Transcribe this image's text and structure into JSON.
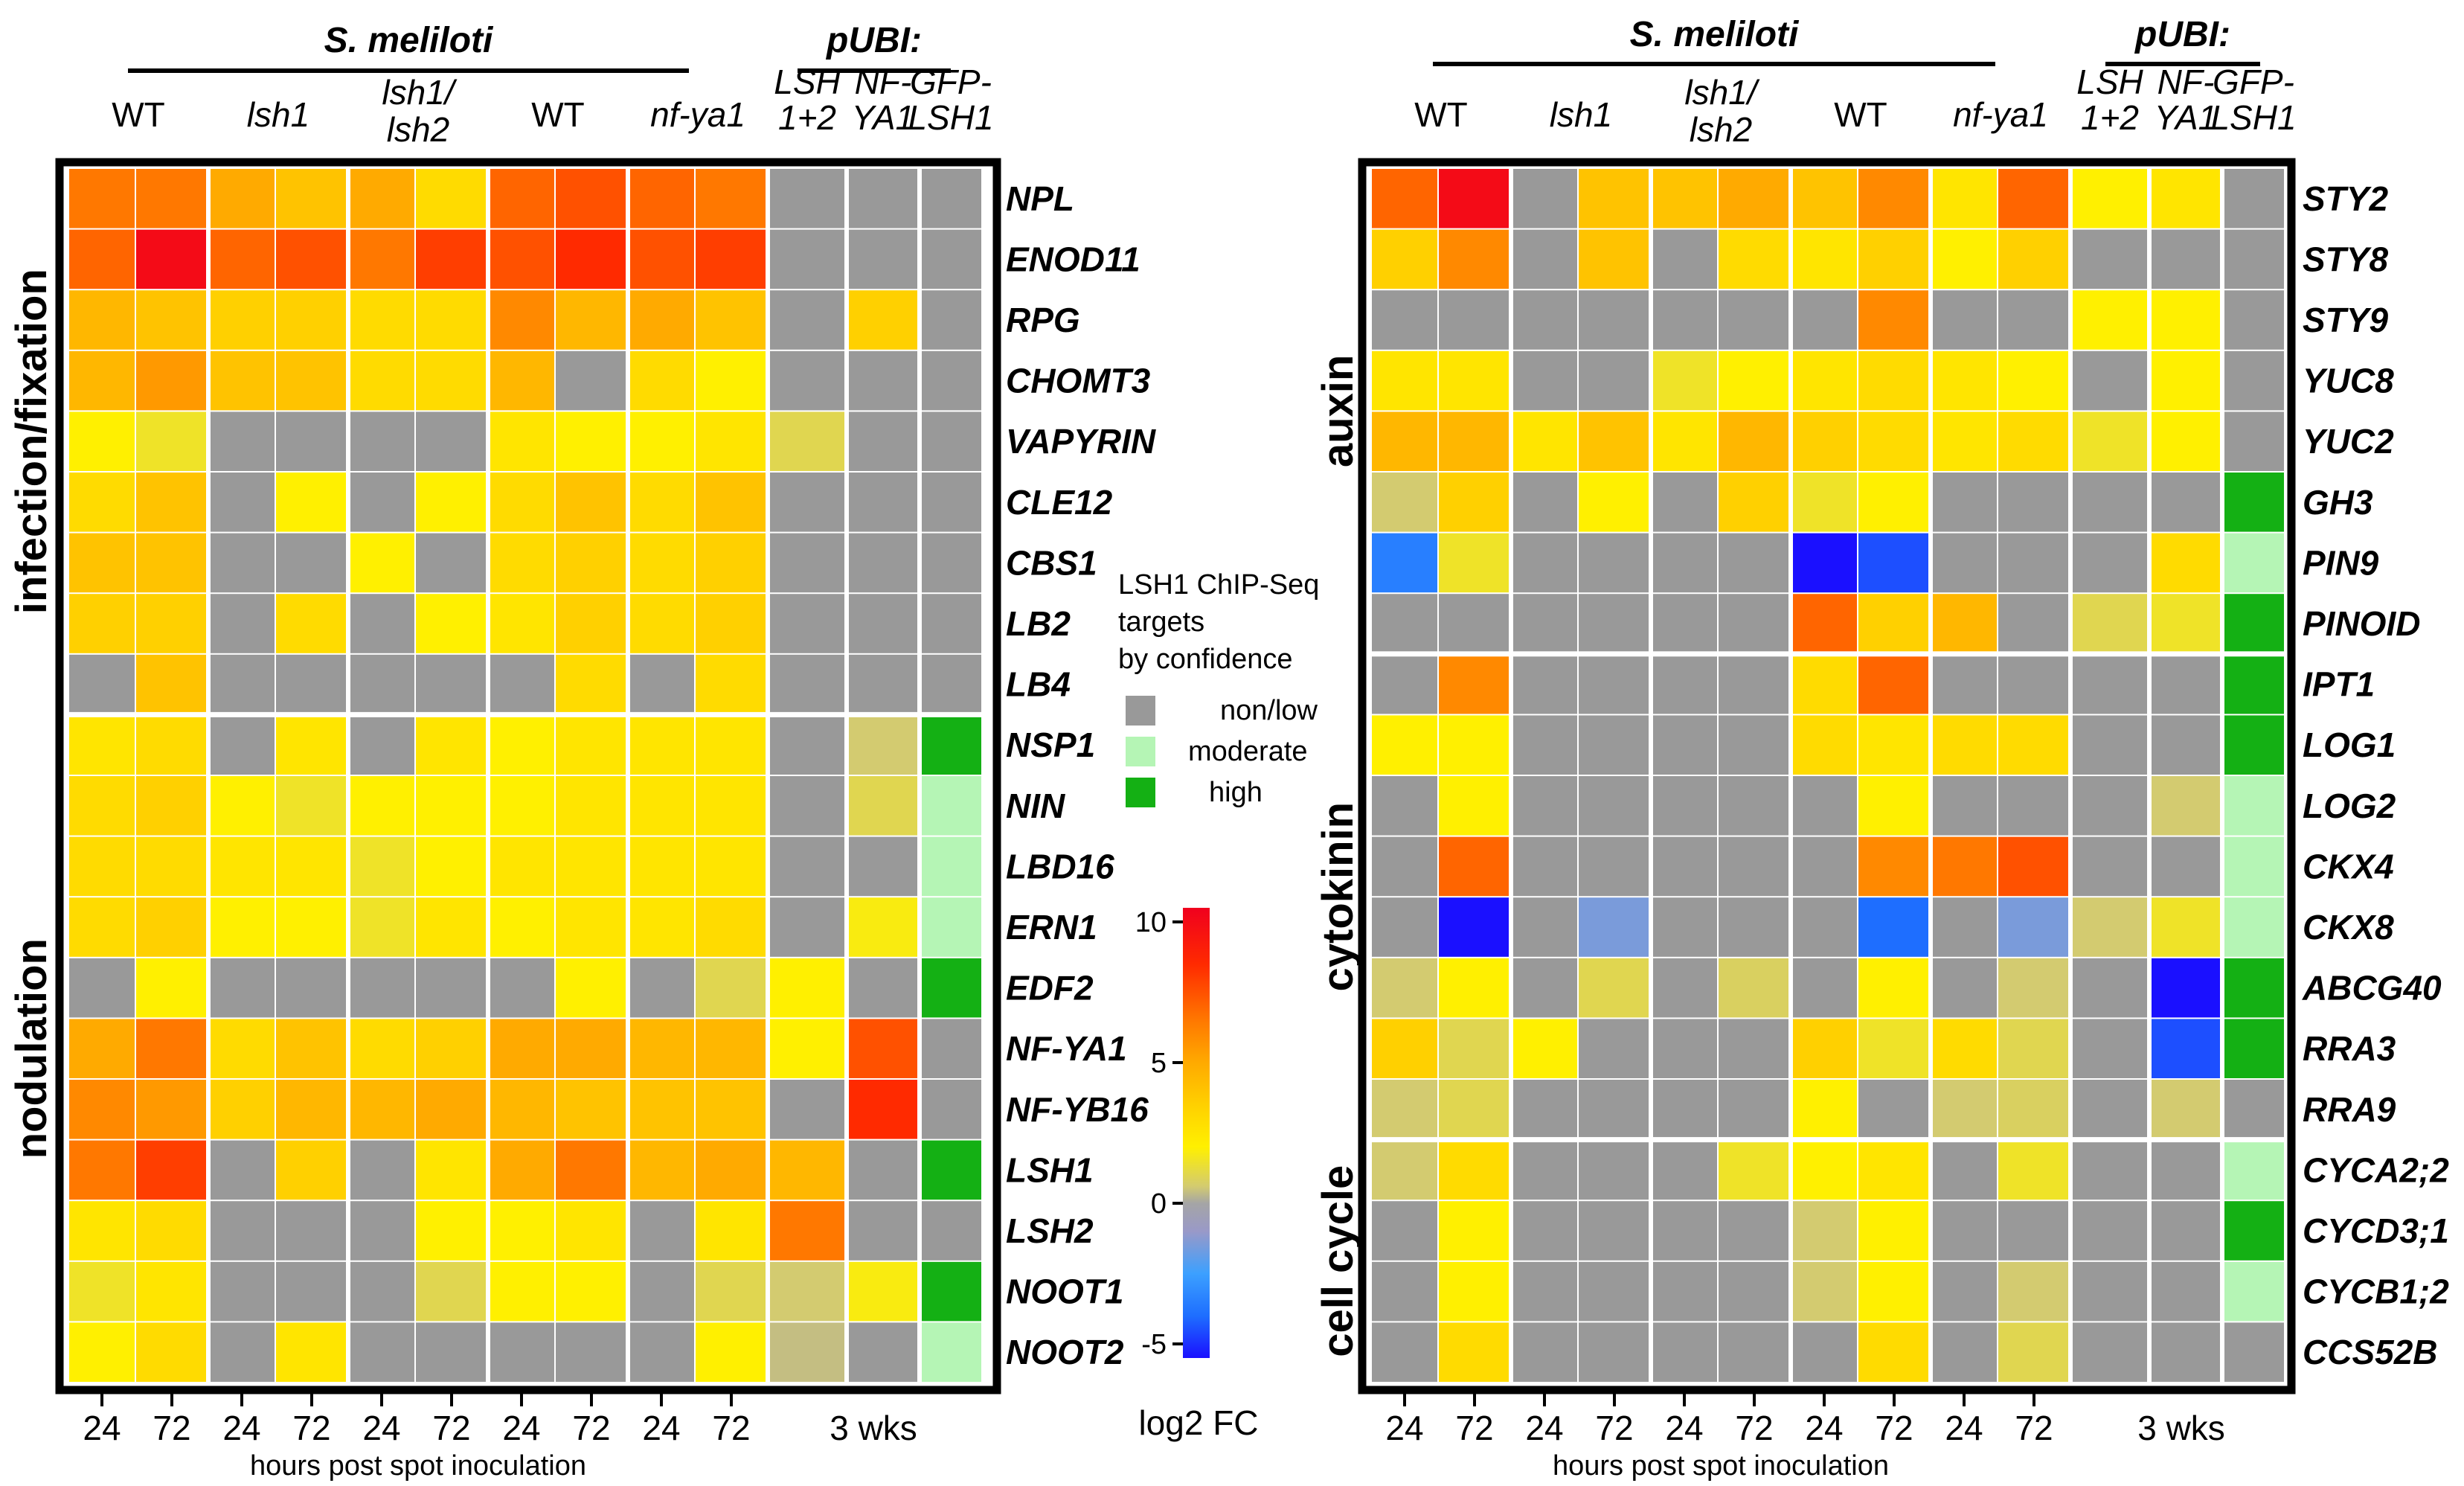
{
  "colors": {
    "grey": "#999999",
    "moderate": "#b5f5b5",
    "high": "#14b014",
    "frame": "#000000",
    "gradient_stops": [
      "#1a10ff",
      "#1e6eff",
      "#3ca0ff",
      "#9999c8",
      "#a5a5a5",
      "#d3cb70",
      "#fff000",
      "#ffd000",
      "#ffaa00",
      "#ff7800",
      "#ff2a00",
      "#f0001e"
    ]
  },
  "chart_data": [
    {
      "type": "heatmap",
      "panel": "left",
      "organism_label": "S. meliloti",
      "pubi_label": "pUBI:",
      "groups": [
        {
          "label": "WT",
          "italic": false
        },
        {
          "label": "lsh1",
          "italic": true
        },
        {
          "label_lines": [
            "lsh1/",
            "lsh2"
          ],
          "italic": true
        },
        {
          "label": "WT",
          "italic": false
        },
        {
          "label": "nf-ya1",
          "italic": true
        }
      ],
      "pubi_groups": [
        {
          "label_lines": [
            "LSH",
            "1+2"
          ]
        },
        {
          "label_lines": [
            "NF-",
            "YA1"
          ]
        },
        {
          "label_lines": [
            "GFP-",
            "LSH1"
          ]
        }
      ],
      "time_ticks": [
        "24",
        "72",
        "24",
        "72",
        "24",
        "72",
        "24",
        "72",
        "24",
        "72"
      ],
      "pubi_tick": "3 wks",
      "xlabel": "hours post spot inoculation",
      "genes": [
        "NPL",
        "ENOD11",
        "RPG",
        "CHOMT3",
        "VAPYRIN",
        "CLE12",
        "CBS1",
        "LB2",
        "LB4",
        "NSP1",
        "NIN",
        "LBD16",
        "ERN1",
        "EDF2",
        "NF-YA1",
        "NF-YB16",
        "LSH1",
        "LSH2",
        "NOOT1",
        "NOOT2"
      ],
      "categories": [
        {
          "label": "infection/fixation",
          "from": 0,
          "to": 8
        },
        {
          "label": "nodulation",
          "from": 9,
          "to": 19
        }
      ],
      "separator_after_row": 8,
      "log2fc_values": [
        [
          6.5,
          6.5,
          5.0,
          4.0,
          5.0,
          3.0,
          7.0,
          7.5,
          7.0,
          6.5,
          null,
          null
        ],
        [
          7.0,
          10.0,
          7.0,
          7.5,
          6.5,
          8.0,
          7.5,
          8.5,
          7.5,
          8.0,
          null,
          null
        ],
        [
          4.5,
          4.0,
          3.5,
          3.5,
          3.0,
          3.0,
          6.0,
          4.5,
          5.0,
          4.0,
          null,
          3.5
        ],
        [
          4.5,
          5.5,
          4.0,
          4.0,
          3.0,
          3.0,
          4.5,
          null,
          3.0,
          2.0,
          null,
          null
        ],
        [
          2.0,
          1.5,
          null,
          null,
          null,
          null,
          2.5,
          2.0,
          2.0,
          2.5,
          1.0,
          null
        ],
        [
          3.0,
          4.0,
          null,
          2.0,
          null,
          2.0,
          3.0,
          4.0,
          3.0,
          4.0,
          null,
          null
        ],
        [
          4.0,
          4.0,
          null,
          null,
          2.0,
          null,
          3.0,
          3.5,
          3.0,
          3.5,
          null,
          null
        ],
        [
          3.5,
          3.5,
          null,
          3.0,
          null,
          2.0,
          2.5,
          3.5,
          3.0,
          3.5,
          null,
          null
        ],
        [
          null,
          4.0,
          null,
          null,
          null,
          null,
          null,
          3.0,
          null,
          3.0,
          null,
          null
        ],
        [
          2.5,
          3.0,
          null,
          2.5,
          null,
          2.5,
          2.0,
          2.5,
          2.5,
          2.5,
          null,
          0.6
        ],
        [
          3.0,
          3.5,
          2.0,
          1.5,
          2.0,
          2.0,
          2.0,
          2.5,
          2.5,
          2.5,
          null,
          1.0
        ],
        [
          3.0,
          3.0,
          2.5,
          2.5,
          1.5,
          2.0,
          2.5,
          2.5,
          2.5,
          2.5,
          null,
          null
        ],
        [
          3.0,
          3.5,
          2.0,
          2.0,
          1.5,
          2.5,
          2.0,
          2.5,
          2.5,
          3.0,
          null,
          1.8
        ],
        [
          null,
          2.0,
          null,
          null,
          null,
          null,
          null,
          2.0,
          null,
          1.0,
          2.0,
          null
        ],
        [
          5.0,
          6.5,
          3.0,
          4.0,
          3.0,
          3.5,
          5.0,
          5.0,
          4.5,
          4.5,
          2.0,
          7.5
        ],
        [
          6.0,
          5.5,
          3.5,
          4.5,
          4.5,
          5.0,
          4.5,
          4.0,
          4.0,
          4.0,
          null,
          8.5
        ],
        [
          6.5,
          8.0,
          null,
          3.5,
          null,
          2.5,
          5.0,
          6.5,
          4.5,
          5.0,
          4.5,
          null
        ],
        [
          2.5,
          3.0,
          null,
          null,
          null,
          2.0,
          2.0,
          2.5,
          null,
          2.5,
          6.5,
          null
        ],
        [
          1.5,
          2.5,
          null,
          null,
          null,
          1.0,
          2.0,
          2.0,
          null,
          1.0,
          0.6,
          1.8
        ],
        [
          2.0,
          3.0,
          null,
          2.5,
          null,
          null,
          null,
          null,
          null,
          2.0,
          0.4,
          null
        ]
      ],
      "chip_seq": [
        "non/low",
        "non/low",
        "non/low",
        "non/low",
        "non/low",
        "non/low",
        "non/low",
        "non/low",
        "non/low",
        "high",
        "moderate",
        "moderate",
        "moderate",
        "high",
        "non/low",
        "non/low",
        "high",
        "non/low",
        "high",
        "moderate"
      ]
    },
    {
      "type": "heatmap",
      "panel": "right",
      "organism_label": "S. meliloti",
      "pubi_label": "pUBI:",
      "groups": [
        {
          "label": "WT",
          "italic": false
        },
        {
          "label": "lsh1",
          "italic": true
        },
        {
          "label_lines": [
            "lsh1/",
            "lsh2"
          ],
          "italic": true
        },
        {
          "label": "WT",
          "italic": false
        },
        {
          "label": "nf-ya1",
          "italic": true
        }
      ],
      "pubi_groups": [
        {
          "label_lines": [
            "LSH",
            "1+2"
          ]
        },
        {
          "label_lines": [
            "NF-",
            "YA1"
          ]
        },
        {
          "label_lines": [
            "GFP-",
            "LSH1"
          ]
        }
      ],
      "time_ticks": [
        "24",
        "72",
        "24",
        "72",
        "24",
        "72",
        "24",
        "72",
        "24",
        "72"
      ],
      "pubi_tick": "3 wks",
      "xlabel": "hours post spot inoculation",
      "genes": [
        "STY2",
        "STY8",
        "STY9",
        "YUC8",
        "YUC2",
        "GH3",
        "PIN9",
        "PINOID",
        "IPT1",
        "LOG1",
        "LOG2",
        "CKX4",
        "CKX8",
        "ABCG40",
        "RRA3",
        "RRA9",
        "CYCA2;2",
        "CYCD3;1",
        "CYCB1;2",
        "CCS52B"
      ],
      "categories": [
        {
          "label": "auxin",
          "from": 0,
          "to": 7
        },
        {
          "label": "cytokinin",
          "from": 8,
          "to": 15
        },
        {
          "label": "cell cycle",
          "from": 16,
          "to": 19
        }
      ],
      "separators_after_rows": [
        7,
        15
      ],
      "log2fc_values": [
        [
          7.0,
          10.0,
          null,
          4.0,
          4.0,
          5.0,
          4.0,
          6.0,
          2.5,
          7.0,
          2.0,
          2.5
        ],
        [
          3.5,
          6.0,
          null,
          4.0,
          null,
          3.0,
          2.5,
          3.5,
          2.0,
          3.5,
          null,
          null
        ],
        [
          null,
          null,
          null,
          null,
          null,
          null,
          null,
          6.0,
          null,
          null,
          2.0,
          2.0
        ],
        [
          2.5,
          2.5,
          null,
          null,
          1.5,
          2.0,
          2.5,
          3.0,
          2.5,
          2.0,
          null,
          2.0
        ],
        [
          4.5,
          4.5,
          2.5,
          4.0,
          2.5,
          4.5,
          3.5,
          3.0,
          2.5,
          3.0,
          1.5,
          2.0
        ],
        [
          0.6,
          3.5,
          null,
          2.0,
          null,
          3.5,
          1.5,
          2.0,
          null,
          null,
          null,
          null
        ],
        [
          -3.5,
          1.5,
          null,
          null,
          null,
          null,
          -6.0,
          -4.5,
          null,
          null,
          null,
          3.0
        ],
        [
          null,
          null,
          null,
          null,
          null,
          null,
          7.0,
          3.5,
          4.5,
          null,
          1.0,
          1.5
        ],
        [
          null,
          6.0,
          null,
          null,
          null,
          null,
          3.0,
          7.0,
          null,
          null,
          null,
          null
        ],
        [
          2.0,
          2.0,
          null,
          null,
          null,
          null,
          3.0,
          2.5,
          3.0,
          3.0,
          null,
          null
        ],
        [
          null,
          2.0,
          null,
          null,
          null,
          null,
          null,
          2.0,
          null,
          null,
          null,
          0.6
        ],
        [
          null,
          7.0,
          null,
          null,
          null,
          null,
          null,
          6.0,
          6.5,
          7.5,
          null,
          null
        ],
        [
          null,
          -6.0,
          null,
          -1.5,
          null,
          null,
          null,
          -4.0,
          null,
          -1.5,
          0.6,
          1.5
        ],
        [
          0.6,
          2.0,
          null,
          1.0,
          null,
          0.8,
          null,
          2.0,
          null,
          0.6,
          null,
          -6.5
        ],
        [
          3.5,
          1.0,
          2.0,
          null,
          null,
          null,
          3.5,
          1.5,
          3.0,
          1.0,
          null,
          -4.5
        ],
        [
          0.6,
          1.0,
          null,
          null,
          null,
          null,
          2.0,
          null,
          0.6,
          0.8,
          null,
          0.6
        ],
        [
          0.6,
          3.0,
          null,
          null,
          null,
          1.5,
          2.0,
          2.5,
          null,
          1.5,
          null,
          null
        ],
        [
          null,
          2.0,
          null,
          null,
          null,
          null,
          0.6,
          2.0,
          null,
          null,
          null,
          null
        ],
        [
          null,
          2.0,
          null,
          null,
          null,
          null,
          0.6,
          2.0,
          null,
          0.6,
          null,
          null
        ],
        [
          null,
          3.0,
          null,
          null,
          null,
          null,
          null,
          3.0,
          null,
          1.0,
          null,
          null
        ]
      ],
      "chip_seq": [
        "non/low",
        "non/low",
        "non/low",
        "non/low",
        "non/low",
        "high",
        "moderate",
        "high",
        "high",
        "high",
        "moderate",
        "moderate",
        "moderate",
        "high",
        "high",
        "non/low",
        "moderate",
        "high",
        "moderate",
        "non/low"
      ]
    }
  ],
  "colorbar": {
    "title": "log2 FC",
    "range": [
      -5.5,
      10.5
    ],
    "ticks": [
      10,
      5,
      0,
      -5
    ],
    "tick_labels": [
      "10",
      "5",
      "0",
      "-5"
    ]
  },
  "legend": {
    "title_lines": [
      "LSH1 ChIP-Seq",
      "targets",
      "by confidence"
    ],
    "items": [
      {
        "key": "non/low",
        "label": "non/low",
        "color": "#999999"
      },
      {
        "key": "moderate",
        "label": "moderate",
        "color": "#b5f5b5"
      },
      {
        "key": "high",
        "label": "high",
        "color": "#14b014"
      }
    ]
  }
}
